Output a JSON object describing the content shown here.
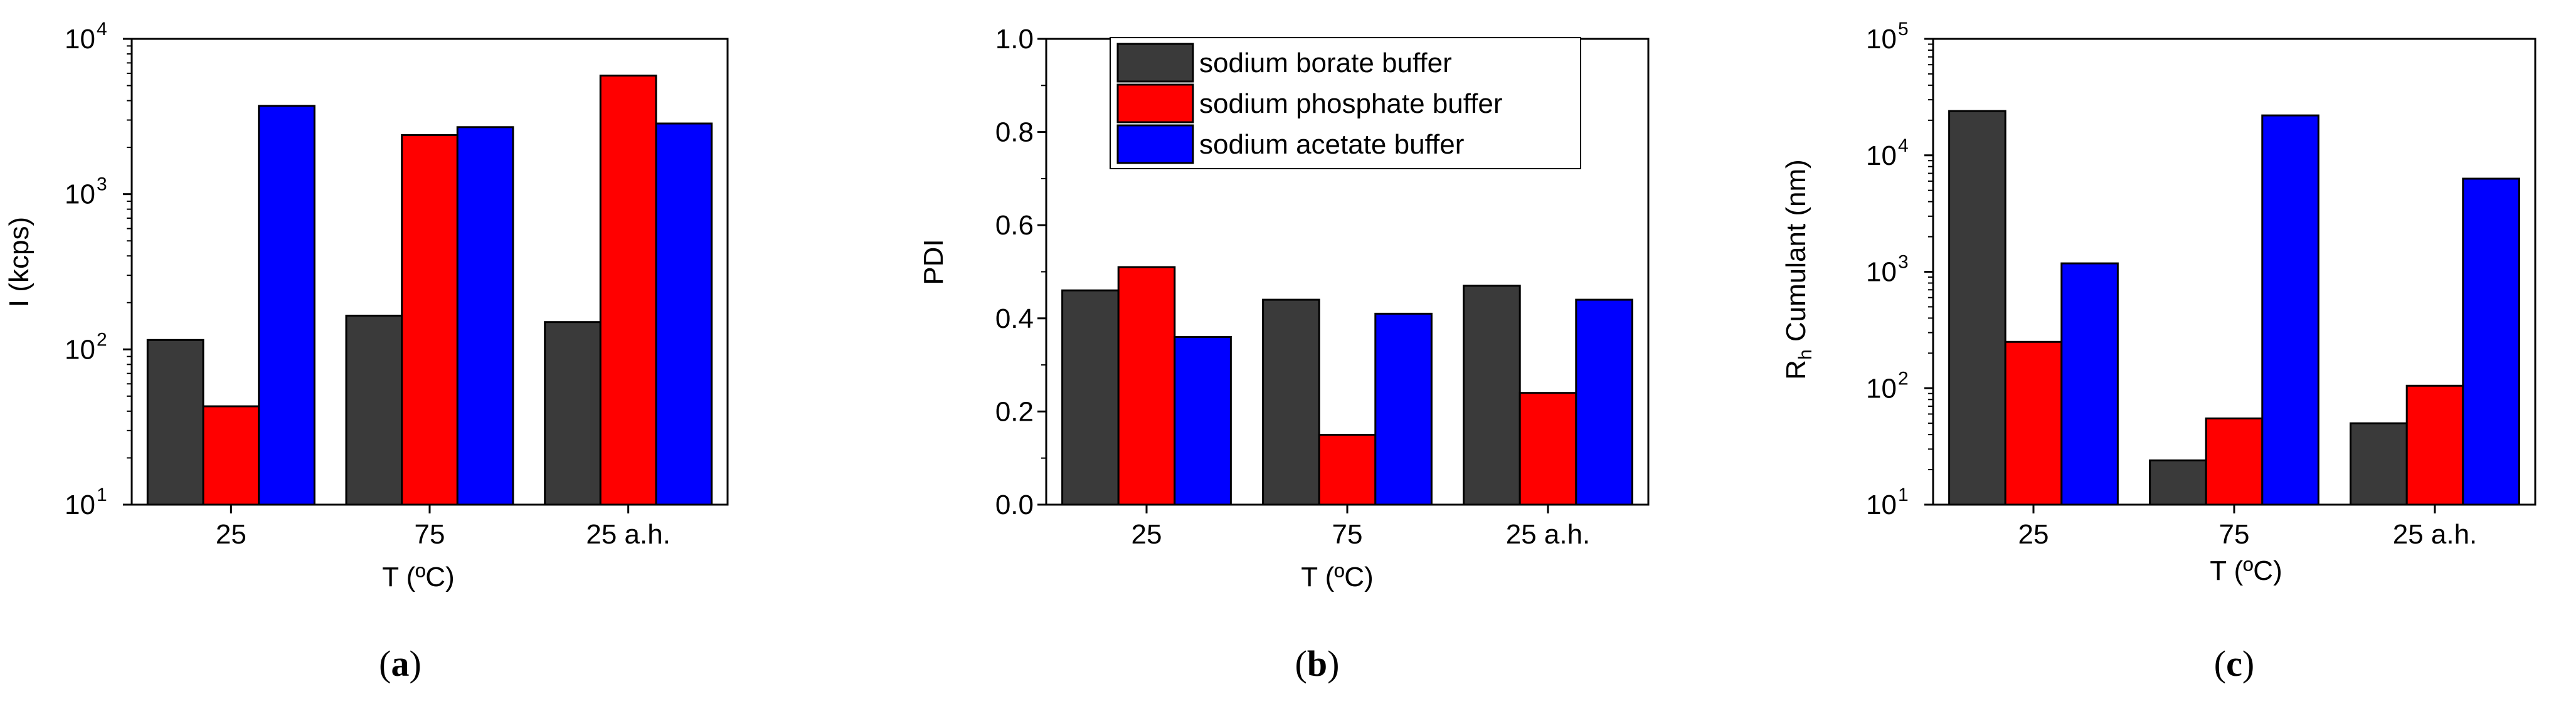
{
  "colors": {
    "borate": "#3a3a3a",
    "phosphate": "#ff0000",
    "acetate": "#0000ff",
    "axis": "#000000",
    "bar_edge": "#000000"
  },
  "legend": {
    "entries": [
      "sodium borate buffer",
      "sodium phosphate buffer",
      "sodium acetate buffer"
    ]
  },
  "chart_data": [
    {
      "type": "bar",
      "panel_label": "a",
      "xlabel": "T (ºC)",
      "ylabel": "I (kcps)",
      "yscale": "log",
      "ylim": [
        10,
        10000
      ],
      "yticks": [
        10,
        100,
        1000,
        10000
      ],
      "ytick_labels": [
        {
          "base": "10",
          "exp": "1"
        },
        {
          "base": "10",
          "exp": "2"
        },
        {
          "base": "10",
          "exp": "3"
        },
        {
          "base": "10",
          "exp": "4"
        }
      ],
      "categories": [
        "25",
        "75",
        "25 a.h."
      ],
      "series": [
        {
          "name": "sodium borate buffer",
          "color": "#3a3a3a",
          "values": [
            115,
            165,
            150
          ]
        },
        {
          "name": "sodium phosphate buffer",
          "color": "#ff0000",
          "values": [
            43,
            2400,
            5800
          ]
        },
        {
          "name": "sodium acetate buffer",
          "color": "#0000ff",
          "values": [
            3700,
            2700,
            2850
          ]
        }
      ],
      "legend": "none"
    },
    {
      "type": "bar",
      "panel_label": "b",
      "xlabel": "T (ºC)",
      "ylabel": "PDI",
      "yscale": "linear",
      "ylim": [
        0,
        1.0
      ],
      "yticks": [
        0.0,
        0.2,
        0.4,
        0.6,
        0.8,
        1.0
      ],
      "ytick_labels": [
        {
          "base": "0.0"
        },
        {
          "base": "0.2"
        },
        {
          "base": "0.4"
        },
        {
          "base": "0.6"
        },
        {
          "base": "0.8"
        },
        {
          "base": "1.0"
        }
      ],
      "categories": [
        "25",
        "75",
        "25 a.h."
      ],
      "series": [
        {
          "name": "sodium borate buffer",
          "color": "#3a3a3a",
          "values": [
            0.46,
            0.44,
            0.47
          ]
        },
        {
          "name": "sodium phosphate buffer",
          "color": "#ff0000",
          "values": [
            0.51,
            0.15,
            0.24
          ]
        },
        {
          "name": "sodium acetate buffer",
          "color": "#0000ff",
          "values": [
            0.36,
            0.41,
            0.44
          ]
        }
      ],
      "legend": "top"
    },
    {
      "type": "bar",
      "panel_label": "c",
      "xlabel": "T (ºC)",
      "ylabel_main": "R",
      "ylabel_sub": "h",
      "ylabel_rest": " Cumulant (nm)",
      "yscale": "log",
      "ylim": [
        10,
        100000
      ],
      "yticks": [
        10,
        100,
        1000,
        10000,
        100000
      ],
      "ytick_labels": [
        {
          "base": "10",
          "exp": "1"
        },
        {
          "base": "10",
          "exp": "2"
        },
        {
          "base": "10",
          "exp": "3"
        },
        {
          "base": "10",
          "exp": "4"
        },
        {
          "base": "10",
          "exp": "5"
        }
      ],
      "categories": [
        "25",
        "75",
        "25 a.h."
      ],
      "series": [
        {
          "name": "sodium borate buffer",
          "color": "#3a3a3a",
          "values": [
            24000,
            24,
            50
          ]
        },
        {
          "name": "sodium phosphate buffer",
          "color": "#ff0000",
          "values": [
            250,
            55,
            105
          ]
        },
        {
          "name": "sodium acetate buffer",
          "color": "#0000ff",
          "values": [
            1180,
            22000,
            6300
          ]
        }
      ],
      "legend": "none"
    }
  ],
  "captions": [
    {
      "open": "(",
      "letter": "a",
      "close": ")"
    },
    {
      "open": "(",
      "letter": "b",
      "close": ")"
    },
    {
      "open": "(",
      "letter": "c",
      "close": ")"
    }
  ]
}
